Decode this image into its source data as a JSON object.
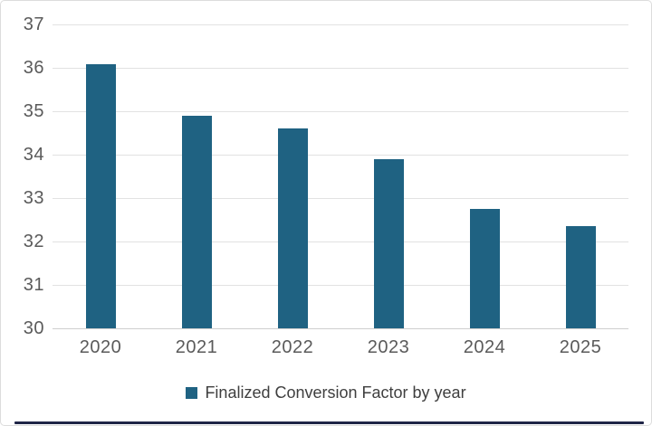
{
  "page": {
    "background": "#ffffff",
    "border_color": "#dcdcdc",
    "bottom_bar_color": "#1f2547"
  },
  "chart_data": {
    "type": "bar",
    "title": "",
    "xlabel": "",
    "ylabel": "",
    "categories": [
      "2020",
      "2021",
      "2022",
      "2023",
      "2024",
      "2025"
    ],
    "values": [
      36.09,
      34.89,
      34.61,
      33.89,
      32.74,
      32.35
    ],
    "series_name": "Finalized Conversion Factor by year",
    "ylim": [
      30,
      37
    ],
    "yticks": [
      30,
      31,
      32,
      33,
      34,
      35,
      36,
      37
    ],
    "grid": "horizontal-on",
    "legend_position": "bottom-center",
    "bar_color": "#1f6282",
    "gridline_color": "#e2e2e2",
    "axis_line_color": "#cfcfcf",
    "tick_label_color": "#5a5a5a",
    "legend_text_color": "#3f3f3f"
  }
}
